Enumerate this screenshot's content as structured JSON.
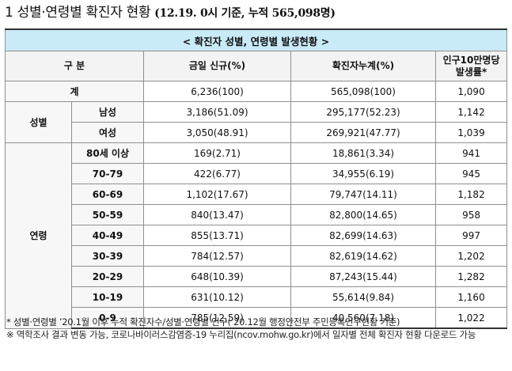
{
  "title": {
    "lead": "1 성별·연령별 확진자 현황",
    "basis": "(12.19. 0시 기준, 누적 565,098명)"
  },
  "table": {
    "banner": "< 확진자 성별, 연령별 발생현황 >",
    "headers": {
      "category": "구 분",
      "daily_new": "금일 신규(%)",
      "cumulative": "확진자누계(%)",
      "rate_line1": "인구10만명당",
      "rate_line2": "발생률*"
    },
    "total": {
      "label": "계",
      "daily": "6,236(100)",
      "cumulative": "565,098(100)",
      "rate": "1,090"
    },
    "gender": {
      "group_label": "성별",
      "rows": [
        {
          "label": "남성",
          "daily": "3,186(51.09)",
          "cumulative": "295,177(52.23)",
          "rate": "1,142"
        },
        {
          "label": "여성",
          "daily": "3,050(48.91)",
          "cumulative": "269,921(47.77)",
          "rate": "1,039"
        }
      ]
    },
    "age": {
      "group_label": "연령",
      "rows": [
        {
          "label": "80세 이상",
          "daily": "169(2.71)",
          "cumulative": "18,861(3.34)",
          "rate": "941"
        },
        {
          "label": "70-79",
          "daily": "422(6.77)",
          "cumulative": "34,955(6.19)",
          "rate": "945"
        },
        {
          "label": "60-69",
          "daily": "1,102(17.67)",
          "cumulative": "79,747(14.11)",
          "rate": "1,182"
        },
        {
          "label": "50-59",
          "daily": "840(13.47)",
          "cumulative": "82,800(14.65)",
          "rate": "958"
        },
        {
          "label": "40-49",
          "daily": "855(13.71)",
          "cumulative": "82,699(14.63)",
          "rate": "997"
        },
        {
          "label": "30-39",
          "daily": "784(12.57)",
          "cumulative": "82,619(14.62)",
          "rate": "1,202"
        },
        {
          "label": "20-29",
          "daily": "648(10.39)",
          "cumulative": "87,243(15.44)",
          "rate": "1,282"
        },
        {
          "label": "10-19",
          "daily": "631(10.12)",
          "cumulative": "55,614(9.84)",
          "rate": "1,160"
        },
        {
          "label": "0-9",
          "daily": "785(12.59)",
          "cumulative": "40,560(7.18)",
          "rate": "1,022"
        }
      ]
    }
  },
  "notes": [
    "* 성별·연령별 ’20.1월 이후 누적 확진자수/성별·연령별 인구(’20.12월 행정안전부 주민등록인구현황 기준)",
    "※ 역학조사 결과 변동 가능, 코로나바이러스감염증-19 누리집(ncov.mohw.go.kr)에서 일자별 전체 확진자 현황 다운로드 가능"
  ]
}
